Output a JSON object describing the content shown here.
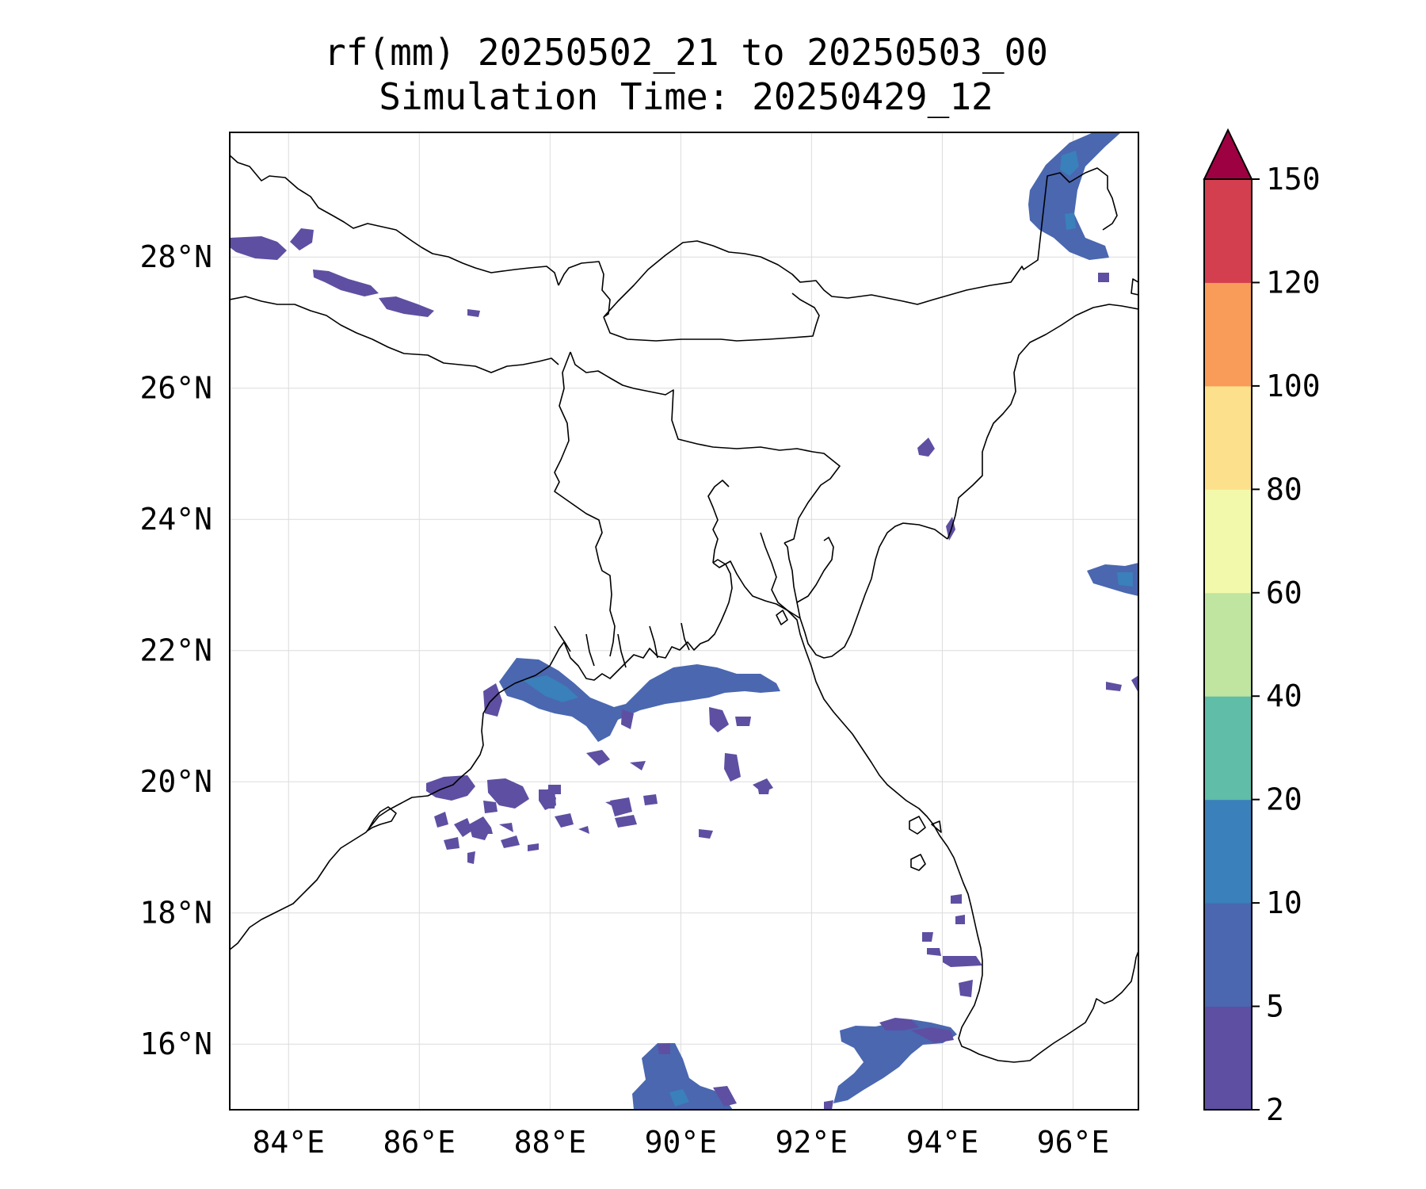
{
  "title": {
    "line1": "rf(mm) 20250502_21 to 20250503_00",
    "line2": "Simulation Time: 20250429_12"
  },
  "map": {
    "lon_range": [
      83.1,
      97.0
    ],
    "lat_range": [
      15.0,
      29.9
    ],
    "lon_ticks": [
      {
        "value": 84,
        "label": "84°E"
      },
      {
        "value": 86,
        "label": "86°E"
      },
      {
        "value": 88,
        "label": "88°E"
      },
      {
        "value": 90,
        "label": "90°E"
      },
      {
        "value": 92,
        "label": "92°E"
      },
      {
        "value": 94,
        "label": "94°E"
      },
      {
        "value": 96,
        "label": "96°E"
      }
    ],
    "lat_ticks": [
      {
        "value": 16,
        "label": "16°N"
      },
      {
        "value": 18,
        "label": "18°N"
      },
      {
        "value": 20,
        "label": "20°N"
      },
      {
        "value": 22,
        "label": "22°N"
      },
      {
        "value": 24,
        "label": "24°N"
      },
      {
        "value": 26,
        "label": "26°N"
      },
      {
        "value": 28,
        "label": "28°N"
      }
    ],
    "gridlines": true
  },
  "colorbar": {
    "levels": [
      {
        "label": "2",
        "color": "#5e4fa2"
      },
      {
        "label": "5",
        "color": "#4a67b0"
      },
      {
        "label": "10",
        "color": "#3a80ba"
      },
      {
        "label": "20",
        "color": "#5fbda8"
      },
      {
        "label": "40",
        "color": "#bfe5a0"
      },
      {
        "label": "60",
        "color": "#f3f9aa"
      },
      {
        "label": "80",
        "color": "#fde08b"
      },
      {
        "label": "100",
        "color": "#f99c59"
      },
      {
        "label": "120",
        "color": "#d43f4f"
      }
    ],
    "top_label": "150",
    "extend_color": "#9e0142"
  }
}
